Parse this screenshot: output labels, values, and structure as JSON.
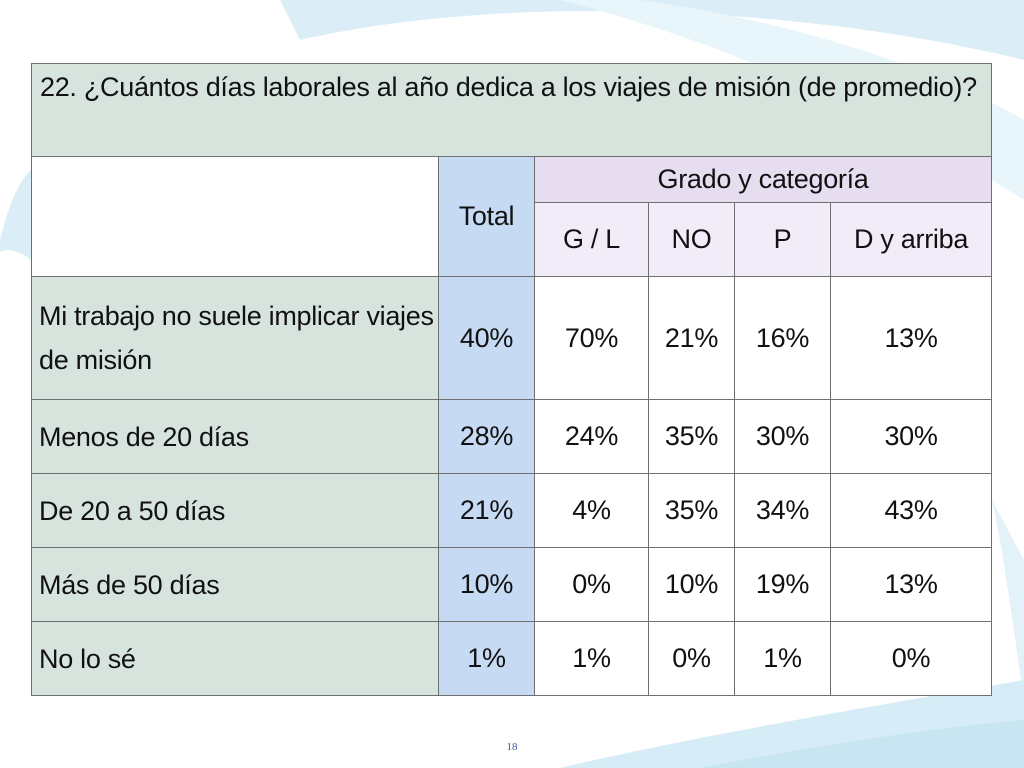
{
  "question": "22. ¿Cuántos días laborales al año dedica a los viajes de misión (de promedio)?",
  "total_header": "Total",
  "group_header": "Grado y categoría",
  "sub_headers": [
    "G / L",
    "NO",
    "P",
    "D y arriba"
  ],
  "rows": [
    {
      "label": "Mi trabajo no suele implicar viajes de misión",
      "total": "40%",
      "values": [
        "70%",
        "21%",
        "16%",
        "13%"
      ]
    },
    {
      "label": "Menos de 20 días",
      "total": "28%",
      "values": [
        "24%",
        "35%",
        "30%",
        "30%"
      ]
    },
    {
      "label": "De 20 a 50 días",
      "total": "21%",
      "values": [
        "4%",
        "35%",
        "34%",
        "43%"
      ]
    },
    {
      "label": "Más de 50 días",
      "total": "10%",
      "values": [
        "0%",
        "10%",
        "19%",
        "13%"
      ]
    },
    {
      "label": "No lo sé",
      "total": "1%",
      "values": [
        "1%",
        "0%",
        "1%",
        "0%"
      ]
    }
  ],
  "page_number": "18",
  "colors": {
    "label_bg": "#d7e4de",
    "total_bg": "#c6daf4",
    "group_bg": "#e6def0"
  }
}
